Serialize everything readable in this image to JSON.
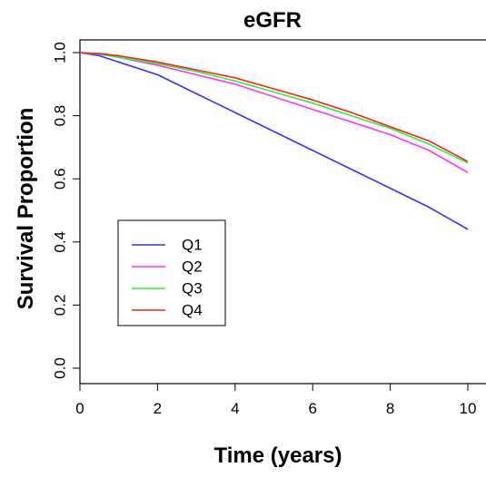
{
  "chart_data": {
    "type": "line",
    "title": "eGFR",
    "xlabel": "Time (years)",
    "ylabel": "Survival Proportion",
    "xlim": [
      0,
      10
    ],
    "ylim": [
      0,
      1.0
    ],
    "x_ticks": [
      "0",
      "2",
      "4",
      "6",
      "8",
      "10"
    ],
    "y_ticks": [
      "0.0",
      "0.2",
      "0.4",
      "0.6",
      "0.8",
      "1.0"
    ],
    "grid": false,
    "legend_position": "left",
    "series": [
      {
        "name": "Q1",
        "color": "#3333ff",
        "x": [
          0,
          0.5,
          1,
          2,
          3,
          4,
          5,
          6,
          7,
          8,
          9,
          10
        ],
        "y": [
          1.0,
          0.99,
          0.97,
          0.93,
          0.87,
          0.81,
          0.75,
          0.69,
          0.63,
          0.57,
          0.51,
          0.44
        ]
      },
      {
        "name": "Q2",
        "color": "#ff33ff",
        "x": [
          0,
          0.5,
          1,
          2,
          3,
          4,
          5,
          6,
          7,
          8,
          9,
          10
        ],
        "y": [
          1.0,
          0.995,
          0.985,
          0.96,
          0.93,
          0.9,
          0.86,
          0.82,
          0.78,
          0.74,
          0.69,
          0.62
        ]
      },
      {
        "name": "Q3",
        "color": "#33ee33",
        "x": [
          0,
          0.5,
          1,
          2,
          3,
          4,
          5,
          6,
          7,
          8,
          9,
          10
        ],
        "y": [
          1.0,
          0.995,
          0.985,
          0.965,
          0.94,
          0.91,
          0.875,
          0.84,
          0.8,
          0.76,
          0.71,
          0.65
        ]
      },
      {
        "name": "Q4",
        "color": "#ee2222",
        "x": [
          0,
          0.5,
          1,
          2,
          3,
          4,
          5,
          6,
          7,
          8,
          9,
          10
        ],
        "y": [
          1.0,
          0.997,
          0.99,
          0.97,
          0.945,
          0.92,
          0.885,
          0.85,
          0.81,
          0.765,
          0.72,
          0.655
        ]
      }
    ]
  }
}
